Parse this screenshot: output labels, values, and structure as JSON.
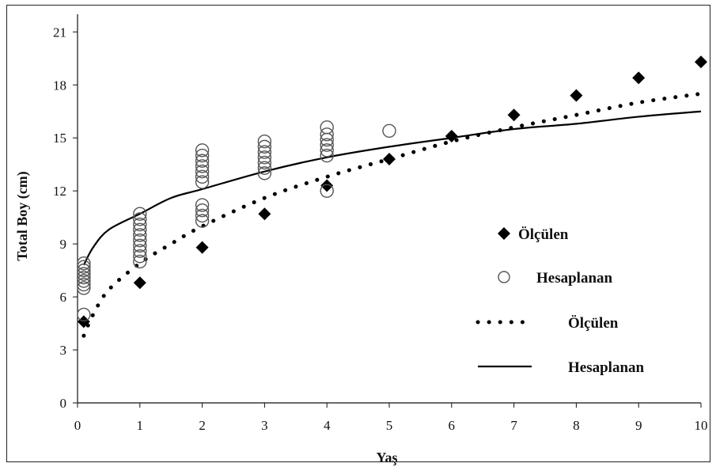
{
  "chart_data": {
    "type": "scatter",
    "xlabel": "Yaş",
    "ylabel": "Total Boy (cm)",
    "xlim": [
      0,
      10
    ],
    "ylim": [
      0,
      22
    ],
    "x_ticks": [
      0,
      1,
      2,
      3,
      4,
      5,
      6,
      7,
      8,
      9,
      10
    ],
    "y_ticks": [
      0,
      3,
      6,
      9,
      12,
      15,
      18,
      21
    ],
    "grid": false,
    "legend_position": "right-center",
    "series": [
      {
        "name": "Ölçülen",
        "kind": "points",
        "marker": "diamond-filled",
        "color": "#000000",
        "points": [
          {
            "x": 0.1,
            "y": 4.6
          },
          {
            "x": 1,
            "y": 6.8
          },
          {
            "x": 2,
            "y": 8.8
          },
          {
            "x": 3,
            "y": 10.7
          },
          {
            "x": 4,
            "y": 12.3
          },
          {
            "x": 5,
            "y": 13.8
          },
          {
            "x": 6,
            "y": 15.1
          },
          {
            "x": 7,
            "y": 16.3
          },
          {
            "x": 8,
            "y": 17.4
          },
          {
            "x": 9,
            "y": 18.4
          },
          {
            "x": 10,
            "y": 19.3
          }
        ]
      },
      {
        "name": "Hesaplanan",
        "kind": "points",
        "marker": "circle-open",
        "color": "#555555",
        "points": [
          {
            "x": 0.1,
            "y": 6.5
          },
          {
            "x": 0.1,
            "y": 6.7
          },
          {
            "x": 0.1,
            "y": 6.9
          },
          {
            "x": 0.1,
            "y": 7.1
          },
          {
            "x": 0.1,
            "y": 7.3
          },
          {
            "x": 0.1,
            "y": 7.5
          },
          {
            "x": 0.1,
            "y": 7.7
          },
          {
            "x": 0.1,
            "y": 7.9
          },
          {
            "x": 0.1,
            "y": 5.0
          },
          {
            "x": 1,
            "y": 8.0
          },
          {
            "x": 1,
            "y": 8.3
          },
          {
            "x": 1,
            "y": 8.6
          },
          {
            "x": 1,
            "y": 8.9
          },
          {
            "x": 1,
            "y": 9.2
          },
          {
            "x": 1,
            "y": 9.5
          },
          {
            "x": 1,
            "y": 9.8
          },
          {
            "x": 1,
            "y": 10.1
          },
          {
            "x": 1,
            "y": 10.4
          },
          {
            "x": 1,
            "y": 10.7
          },
          {
            "x": 2,
            "y": 10.3
          },
          {
            "x": 2,
            "y": 10.6
          },
          {
            "x": 2,
            "y": 10.9
          },
          {
            "x": 2,
            "y": 11.2
          },
          {
            "x": 2,
            "y": 12.5
          },
          {
            "x": 2,
            "y": 12.8
          },
          {
            "x": 2,
            "y": 13.1
          },
          {
            "x": 2,
            "y": 13.4
          },
          {
            "x": 2,
            "y": 13.7
          },
          {
            "x": 2,
            "y": 14.0
          },
          {
            "x": 2,
            "y": 14.3
          },
          {
            "x": 3,
            "y": 13.0
          },
          {
            "x": 3,
            "y": 13.3
          },
          {
            "x": 3,
            "y": 13.6
          },
          {
            "x": 3,
            "y": 13.9
          },
          {
            "x": 3,
            "y": 14.2
          },
          {
            "x": 3,
            "y": 14.5
          },
          {
            "x": 3,
            "y": 14.8
          },
          {
            "x": 4,
            "y": 12.0
          },
          {
            "x": 4,
            "y": 14.0
          },
          {
            "x": 4,
            "y": 14.3
          },
          {
            "x": 4,
            "y": 14.6
          },
          {
            "x": 4,
            "y": 14.9
          },
          {
            "x": 4,
            "y": 15.2
          },
          {
            "x": 4,
            "y": 15.6
          },
          {
            "x": 5,
            "y": 15.4
          }
        ]
      },
      {
        "name": "Ölçülen",
        "kind": "line",
        "style": "dotted",
        "color": "#000000",
        "points": [
          {
            "x": 0.1,
            "y": 3.8
          },
          {
            "x": 0.25,
            "y": 5.0
          },
          {
            "x": 0.5,
            "y": 6.4
          },
          {
            "x": 1,
            "y": 7.9
          },
          {
            "x": 1.5,
            "y": 9.0
          },
          {
            "x": 2,
            "y": 10.0
          },
          {
            "x": 3,
            "y": 11.6
          },
          {
            "x": 4,
            "y": 12.8
          },
          {
            "x": 5,
            "y": 13.8
          },
          {
            "x": 6,
            "y": 14.8
          },
          {
            "x": 7,
            "y": 15.6
          },
          {
            "x": 8,
            "y": 16.3
          },
          {
            "x": 9,
            "y": 17.0
          },
          {
            "x": 10,
            "y": 17.5
          }
        ]
      },
      {
        "name": "Hesaplanan",
        "kind": "line",
        "style": "solid",
        "color": "#000000",
        "points": [
          {
            "x": 0.1,
            "y": 7.8
          },
          {
            "x": 0.25,
            "y": 8.8
          },
          {
            "x": 0.5,
            "y": 9.8
          },
          {
            "x": 1,
            "y": 10.7
          },
          {
            "x": 1.5,
            "y": 11.6
          },
          {
            "x": 2,
            "y": 12.1
          },
          {
            "x": 3,
            "y": 13.1
          },
          {
            "x": 4,
            "y": 13.9
          },
          {
            "x": 5,
            "y": 14.5
          },
          {
            "x": 6,
            "y": 15.0
          },
          {
            "x": 7,
            "y": 15.5
          },
          {
            "x": 8,
            "y": 15.8
          },
          {
            "x": 9,
            "y": 16.2
          },
          {
            "x": 10,
            "y": 16.5
          }
        ]
      }
    ]
  }
}
